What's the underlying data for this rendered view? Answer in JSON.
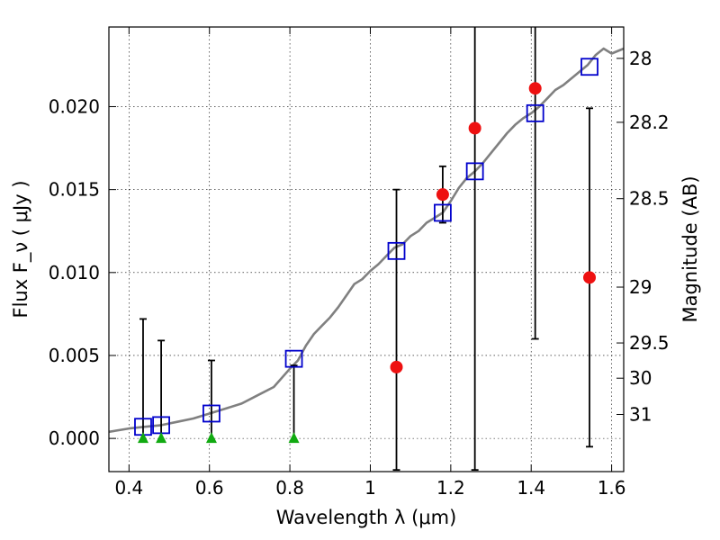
{
  "chart_data": {
    "type": "scatter",
    "xlabel": "Wavelength  λ (μm)",
    "ylabel": "Flux  F_ν ( μJy )",
    "ylabel_right": "Magnitude (AB)",
    "xlim": [
      0.35,
      1.63
    ],
    "ylim": [
      -0.002,
      0.0248
    ],
    "grid": true,
    "x_ticks": [
      {
        "value": 0.4,
        "label": "0.4"
      },
      {
        "value": 0.6,
        "label": "0.6"
      },
      {
        "value": 0.8,
        "label": "0.8"
      },
      {
        "value": 1.0,
        "label": "1"
      },
      {
        "value": 1.2,
        "label": "1.2"
      },
      {
        "value": 1.4,
        "label": "1.4"
      },
      {
        "value": 1.6,
        "label": "1.6"
      }
    ],
    "y_ticks": [
      {
        "value": 0.0,
        "label": "0.000"
      },
      {
        "value": 0.005,
        "label": "0.005"
      },
      {
        "value": 0.01,
        "label": "0.010"
      },
      {
        "value": 0.015,
        "label": "0.015"
      },
      {
        "value": 0.02,
        "label": "0.020"
      }
    ],
    "mag_ticks": [
      {
        "mag": 28,
        "label": "28"
      },
      {
        "mag": 28.2,
        "label": "28.2"
      },
      {
        "mag": 28.5,
        "label": "28.5"
      },
      {
        "mag": 29,
        "label": "29"
      },
      {
        "mag": 29.5,
        "label": "29.5"
      },
      {
        "mag": 30,
        "label": "30"
      },
      {
        "mag": 31,
        "label": "31"
      }
    ],
    "colors": {
      "model": "#808080",
      "model_photometry": "#0000cc",
      "observed": "#ee1111",
      "upper_limit": "#11aa11",
      "errorbar": "#000000"
    },
    "series": [
      {
        "name": "model-sed",
        "kind": "line",
        "points": [
          [
            0.35,
            0.0004
          ],
          [
            0.4,
            0.0006
          ],
          [
            0.44,
            0.0007
          ],
          [
            0.48,
            0.0008
          ],
          [
            0.52,
            0.001
          ],
          [
            0.56,
            0.0012
          ],
          [
            0.6,
            0.0015
          ],
          [
            0.64,
            0.0018
          ],
          [
            0.68,
            0.0021
          ],
          [
            0.72,
            0.0026
          ],
          [
            0.76,
            0.0031
          ],
          [
            0.8,
            0.0042
          ],
          [
            0.82,
            0.0047
          ],
          [
            0.84,
            0.0056
          ],
          [
            0.86,
            0.0063
          ],
          [
            0.88,
            0.0068
          ],
          [
            0.9,
            0.0073
          ],
          [
            0.92,
            0.0079
          ],
          [
            0.94,
            0.0086
          ],
          [
            0.96,
            0.0093
          ],
          [
            0.98,
            0.0096
          ],
          [
            1.0,
            0.0101
          ],
          [
            1.02,
            0.0105
          ],
          [
            1.04,
            0.011
          ],
          [
            1.06,
            0.0115
          ],
          [
            1.08,
            0.0117
          ],
          [
            1.1,
            0.0122
          ],
          [
            1.12,
            0.0125
          ],
          [
            1.14,
            0.013
          ],
          [
            1.16,
            0.0133
          ],
          [
            1.18,
            0.0136
          ],
          [
            1.2,
            0.0143
          ],
          [
            1.22,
            0.0151
          ],
          [
            1.24,
            0.0157
          ],
          [
            1.26,
            0.0161
          ],
          [
            1.28,
            0.0166
          ],
          [
            1.3,
            0.0172
          ],
          [
            1.32,
            0.0178
          ],
          [
            1.34,
            0.0184
          ],
          [
            1.36,
            0.0189
          ],
          [
            1.38,
            0.0193
          ],
          [
            1.4,
            0.0196
          ],
          [
            1.42,
            0.02
          ],
          [
            1.44,
            0.0205
          ],
          [
            1.46,
            0.021
          ],
          [
            1.48,
            0.0213
          ],
          [
            1.5,
            0.0217
          ],
          [
            1.52,
            0.0221
          ],
          [
            1.54,
            0.0225
          ],
          [
            1.56,
            0.0231
          ],
          [
            1.58,
            0.0235
          ],
          [
            1.6,
            0.0232
          ],
          [
            1.63,
            0.0235
          ]
        ]
      },
      {
        "name": "model-photometry",
        "kind": "square",
        "points": [
          [
            0.435,
            0.0007
          ],
          [
            0.48,
            0.0008
          ],
          [
            0.605,
            0.0015
          ],
          [
            0.81,
            0.0048
          ],
          [
            1.065,
            0.0113
          ],
          [
            1.18,
            0.0136
          ],
          [
            1.26,
            0.0161
          ],
          [
            1.41,
            0.0196
          ],
          [
            1.545,
            0.0224
          ]
        ]
      },
      {
        "name": "observed-flux",
        "kind": "circle",
        "points": [
          {
            "x": 1.065,
            "y": 0.0043,
            "lo": -0.0019,
            "hi": 0.015
          },
          {
            "x": 1.18,
            "y": 0.0147,
            "lo": 0.013,
            "hi": 0.0164
          },
          {
            "x": 1.26,
            "y": 0.0187,
            "lo": -0.0019,
            "hi": 0.0248
          },
          {
            "x": 1.41,
            "y": 0.0211,
            "lo": 0.006,
            "hi": 0.0248
          },
          {
            "x": 1.545,
            "y": 0.0097,
            "lo": -0.0005,
            "hi": 0.0199
          }
        ]
      },
      {
        "name": "upper-limits",
        "kind": "triangle",
        "points": [
          {
            "x": 0.435,
            "y": 0.0,
            "lo": 0.0,
            "hi": 0.0072
          },
          {
            "x": 0.48,
            "y": 0.0,
            "lo": 0.0,
            "hi": 0.0059
          },
          {
            "x": 0.605,
            "y": 0.0,
            "lo": 0.0,
            "hi": 0.0047
          },
          {
            "x": 0.81,
            "y": 0.0,
            "lo": 0.0,
            "hi": 0.0044
          }
        ]
      }
    ]
  }
}
